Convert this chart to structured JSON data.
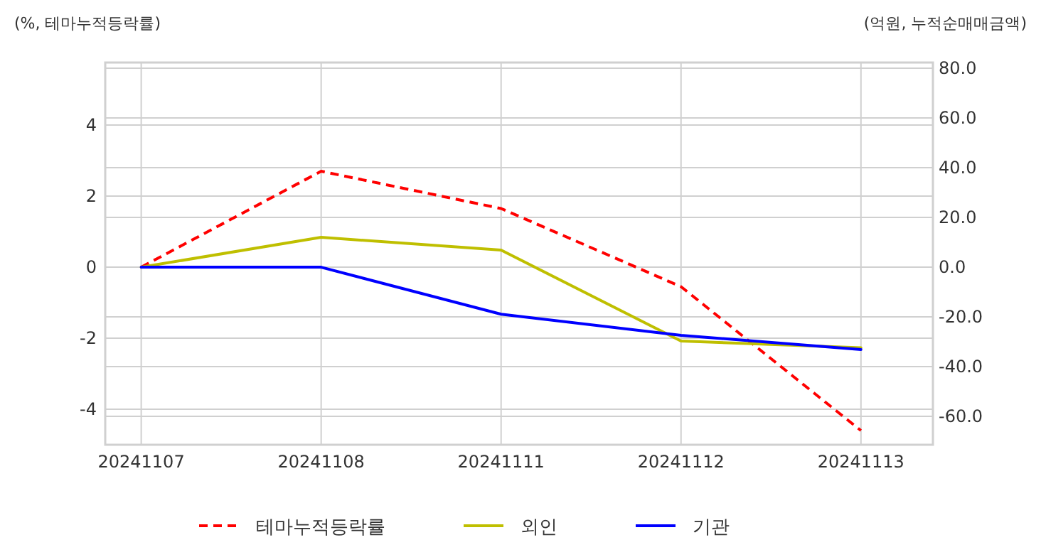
{
  "chart_data": {
    "type": "line",
    "ylabel": "(%, 테마누적등락률)",
    "y2label": "(억원, 누적순매매금액)",
    "categories": [
      "20241107",
      "20241108",
      "20241111",
      "20241112",
      "20241113"
    ],
    "series": [
      {
        "name": "테마누적등락률",
        "color": "#ff0000",
        "line_style": "dashed",
        "values": [
          0,
          2.7,
          1.65,
          -0.55,
          -4.6
        ]
      },
      {
        "name": "외인",
        "color": "#bfbf00",
        "axis": "y2",
        "values": [
          0,
          12.0,
          6.9,
          -29.7,
          -32.4
        ]
      },
      {
        "name": "기관",
        "color": "#0000ff",
        "axis": "y2",
        "values": [
          0,
          0,
          -18.9,
          -27.4,
          -33.1
        ]
      }
    ],
    "ylim": [
      -5,
      5.76
    ],
    "yticks": [
      -4,
      -2,
      0,
      2,
      4
    ],
    "y2lim": [
      -71.4,
      82.3
    ],
    "y2ticks": [
      {
        "value": -60,
        "label": "-60.0"
      },
      {
        "value": -40,
        "label": "-40.0"
      },
      {
        "value": -20,
        "label": "-20.0"
      },
      {
        "value": 0,
        "label": "0.0"
      },
      {
        "value": 20,
        "label": "20.0"
      },
      {
        "value": 40,
        "label": "40.0"
      },
      {
        "value": 60,
        "label": "60.0"
      },
      {
        "value": 80,
        "label": "80.0"
      }
    ],
    "grid": true,
    "legend": "bottom",
    "marker": "none"
  }
}
